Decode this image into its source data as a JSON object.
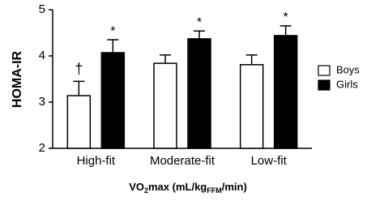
{
  "chart_data": {
    "type": "bar",
    "categories": [
      "High-fit",
      "Moderate-fit",
      "Low-fit"
    ],
    "series": [
      {
        "name": "Boys",
        "color": "#ffffff",
        "values": [
          3.14,
          3.84,
          3.81
        ],
        "errors": [
          0.31,
          0.18,
          0.21
        ],
        "annotations": [
          "†",
          null,
          null
        ]
      },
      {
        "name": "Girls",
        "color": "#000000",
        "values": [
          4.07,
          4.37,
          4.44
        ],
        "errors": [
          0.28,
          0.17,
          0.21
        ],
        "annotations": [
          "*",
          "*",
          "*"
        ]
      }
    ],
    "y_label": "HOMA-IR",
    "x_label_parts": [
      "VO",
      "2",
      "max (mL/kg",
      "FFM",
      "/min)"
    ],
    "ylim": [
      2,
      5
    ],
    "yticks": [
      2,
      3,
      4,
      5
    ],
    "legend": "right"
  }
}
